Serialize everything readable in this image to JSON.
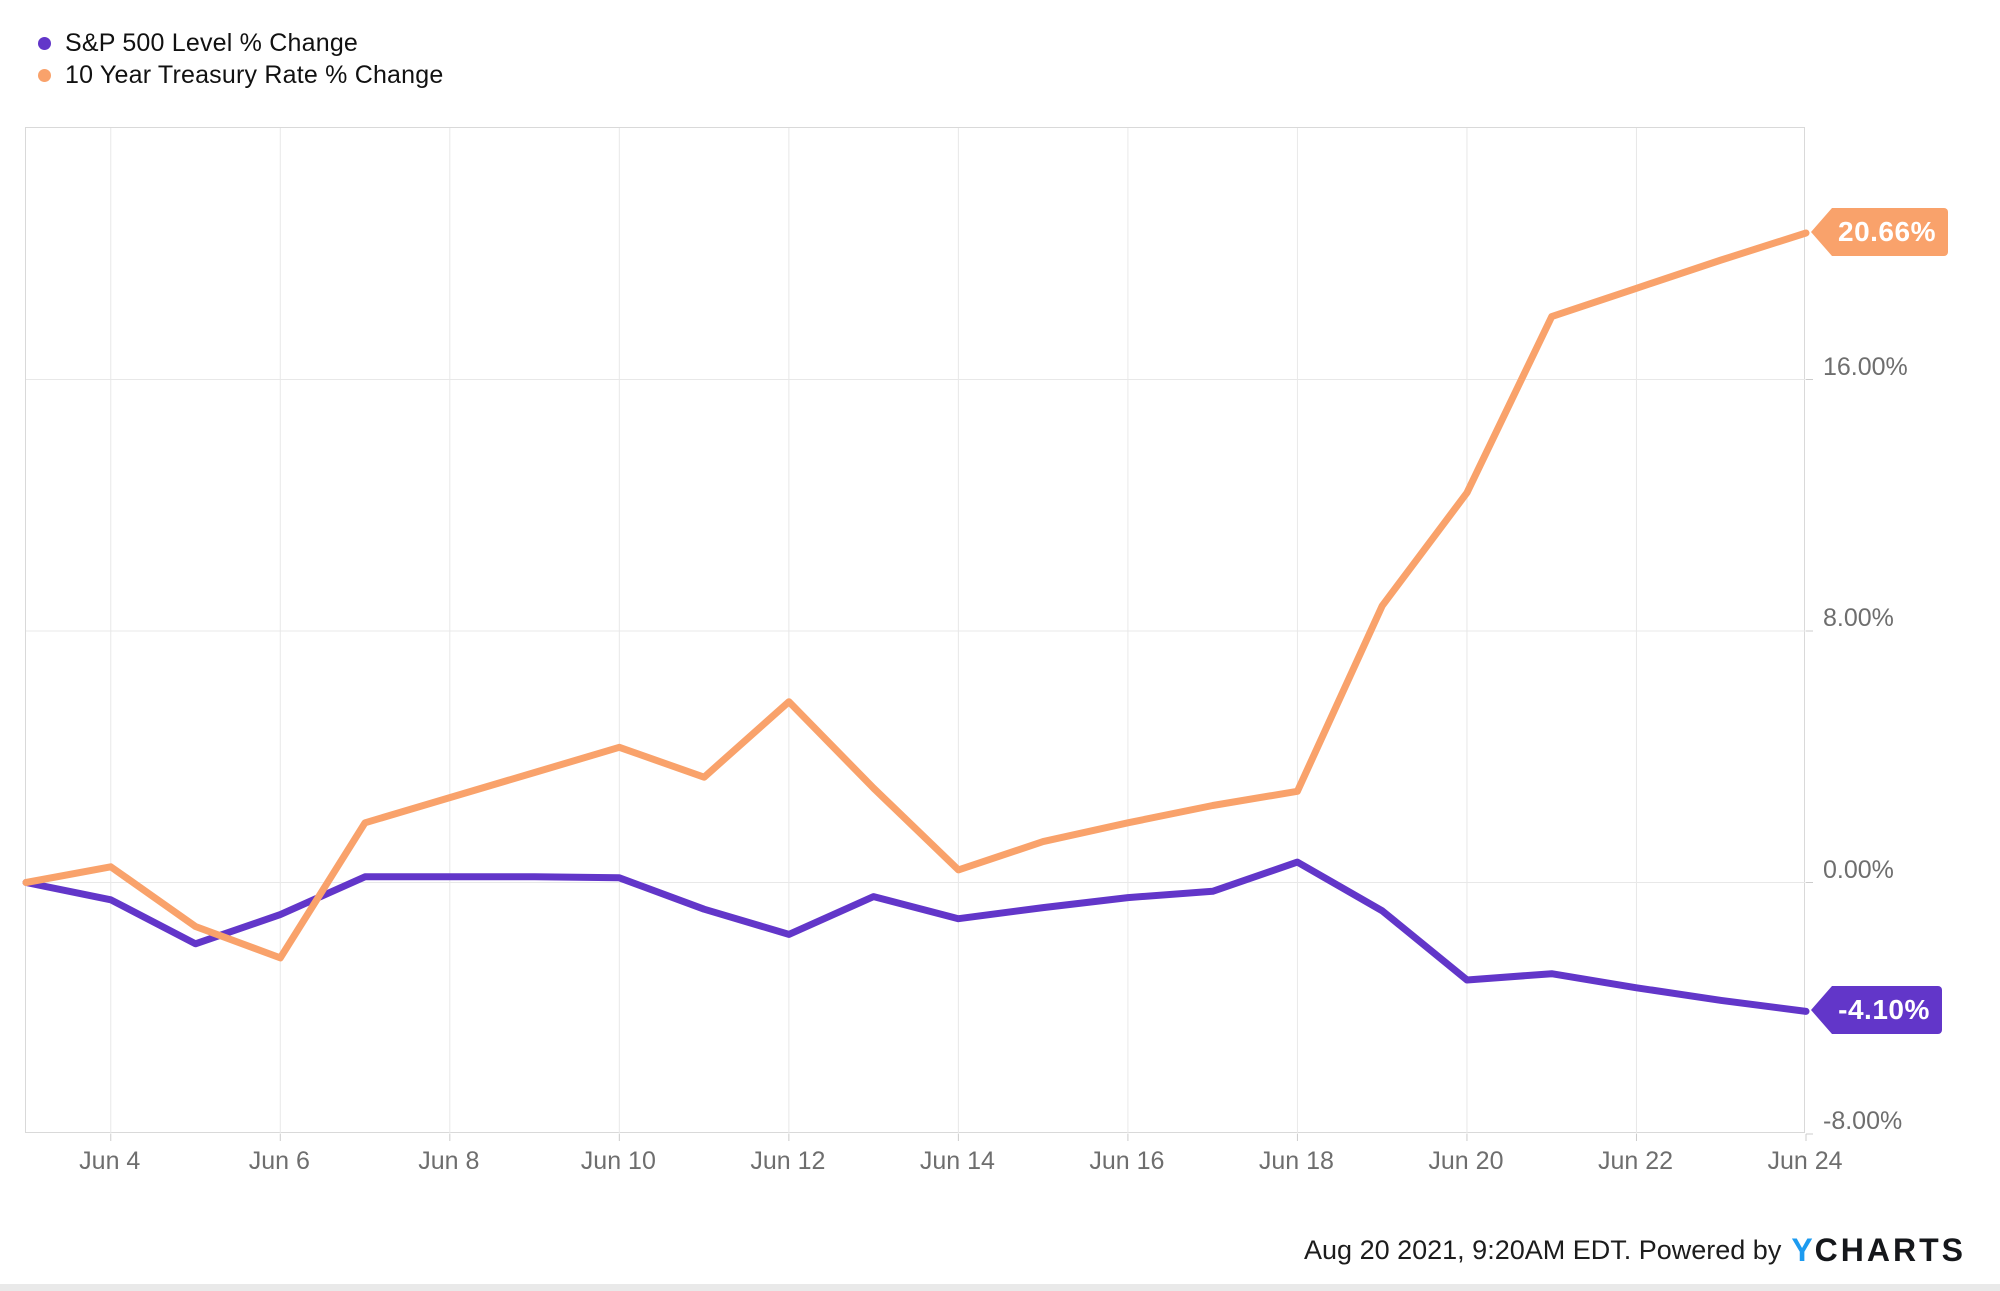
{
  "legend": [
    {
      "label": "S&P 500 Level % Change",
      "color": "#6236c9"
    },
    {
      "label": "10 Year Treasury Rate % Change",
      "color": "#f9a26b"
    }
  ],
  "chart_data": {
    "type": "line",
    "x": [
      "Jun 3",
      "Jun 4",
      "Jun 5",
      "Jun 6",
      "Jun 7",
      "Jun 8",
      "Jun 9",
      "Jun 10",
      "Jun 11",
      "Jun 12",
      "Jun 13",
      "Jun 14",
      "Jun 15",
      "Jun 16",
      "Jun 17",
      "Jun 18",
      "Jun 19",
      "Jun 20",
      "Jun 21",
      "Jun 22",
      "Jun 23",
      "Jun 24"
    ],
    "x_tick_labels": [
      "Jun 4",
      "Jun 6",
      "Jun 8",
      "Jun 10",
      "Jun 12",
      "Jun 14",
      "Jun 16",
      "Jun 18",
      "Jun 20",
      "Jun 22",
      "Jun 24"
    ],
    "series": [
      {
        "name": "S&P 500 Level % Change",
        "color": "#6236c9",
        "end_label": "-4.10%",
        "end_value": -4.1,
        "values": [
          0.0,
          -0.55,
          -1.95,
          -1.02,
          0.18,
          0.18,
          0.18,
          0.15,
          -0.85,
          -1.65,
          -0.45,
          -1.15,
          -0.8,
          -0.48,
          -0.28,
          0.65,
          -0.9,
          -3.1,
          -2.9,
          -3.35,
          -3.75,
          -4.1
        ]
      },
      {
        "name": "10 Year Treasury Rate % Change",
        "color": "#f9a26b",
        "end_label": "20.66%",
        "end_value": 20.66,
        "values": [
          0.0,
          0.5,
          -1.4,
          -2.4,
          1.9,
          2.7,
          3.5,
          4.3,
          3.35,
          5.75,
          3.0,
          0.4,
          1.3,
          1.9,
          2.45,
          2.9,
          8.8,
          12.4,
          18.0,
          18.9,
          19.8,
          20.66
        ]
      }
    ],
    "y_axis": {
      "min": -8,
      "max": 24,
      "grid_step": 8,
      "unit": "%",
      "ticks": [
        {
          "value": 16,
          "label": "16.00%"
        },
        {
          "value": 8,
          "label": "8.00%"
        },
        {
          "value": 0,
          "label": "0.00%"
        },
        {
          "value": -8,
          "label": "-8.00%"
        }
      ]
    },
    "grid": true,
    "legend_position": "top-left",
    "title": "",
    "xlabel": "",
    "ylabel": ""
  },
  "footer": {
    "attribution": "Aug 20 2021, 9:20AM EDT. Powered by",
    "logo_y": "Y",
    "logo_charts": "CHARTS"
  }
}
